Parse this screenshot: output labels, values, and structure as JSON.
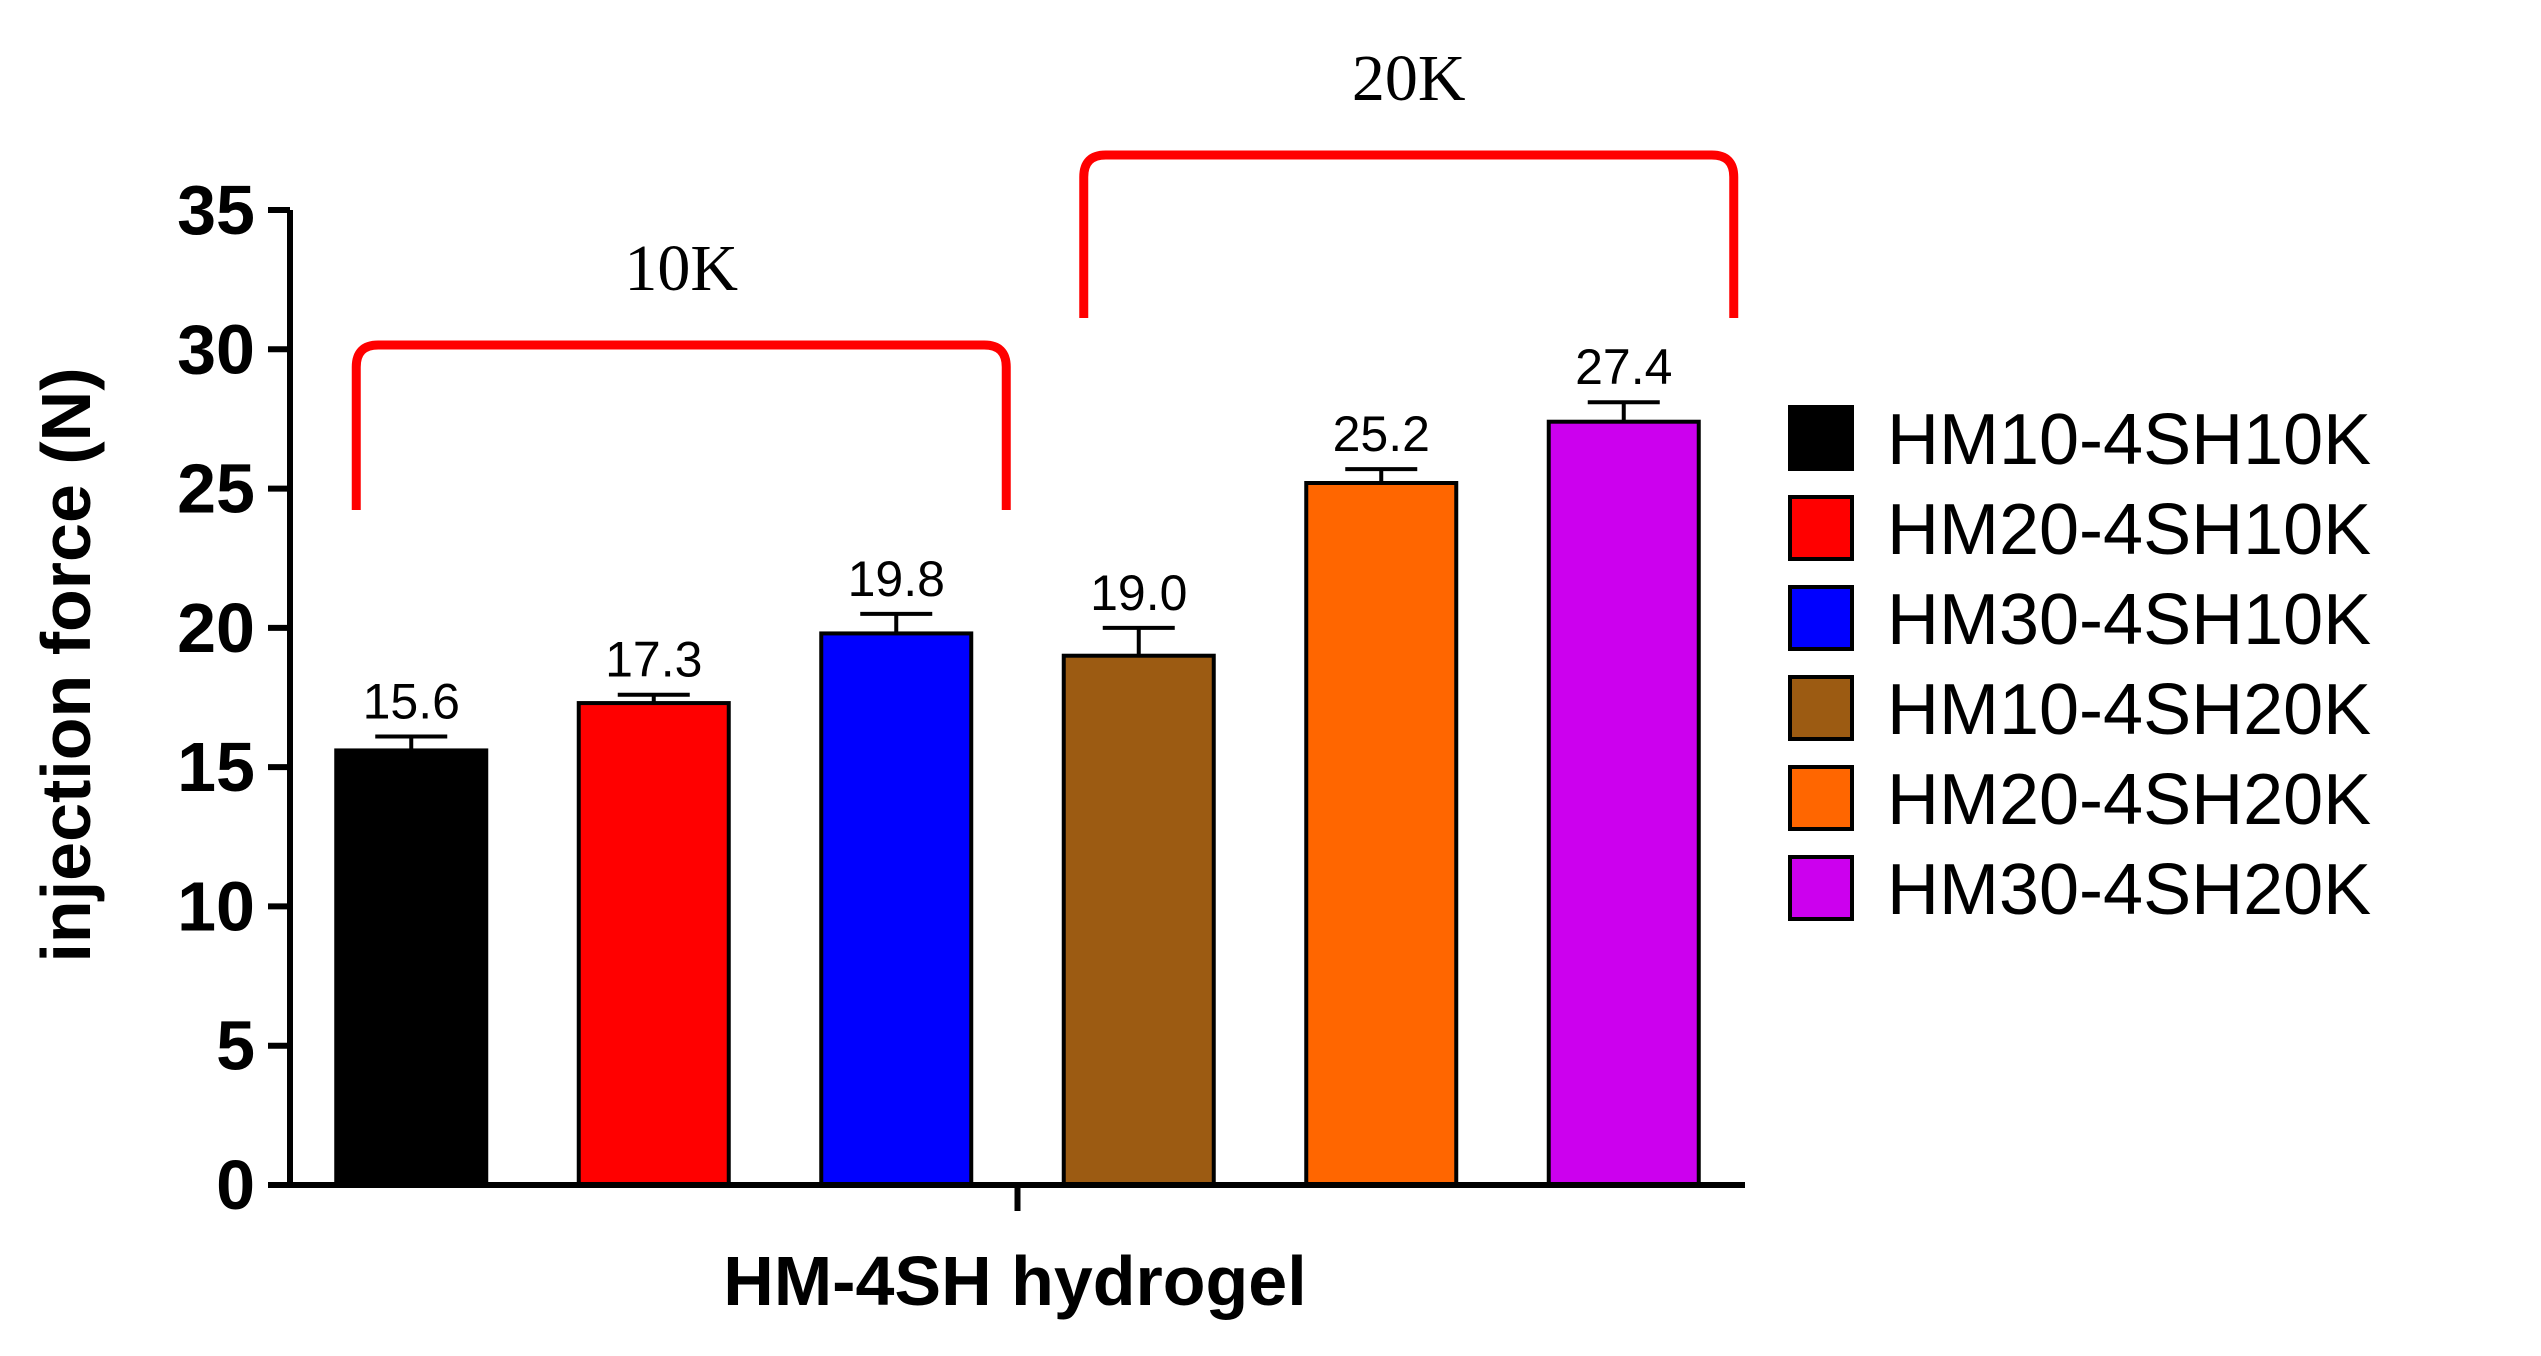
{
  "chart_data": {
    "type": "bar",
    "title": "",
    "xlabel": "HM-4SH hydrogel",
    "ylabel": "injection force (N)",
    "ylim": [
      0,
      35
    ],
    "yticks": [
      0,
      5,
      10,
      15,
      20,
      25,
      30,
      35
    ],
    "ytick_labels": [
      "0",
      "5",
      "10",
      "15",
      "20",
      "25",
      "30",
      "35"
    ],
    "grid": false,
    "legend_position": "right",
    "categories": [
      "HM10-4SH10K",
      "HM20-4SH10K",
      "HM30-4SH10K",
      "HM10-4SH20K",
      "HM20-4SH20K",
      "HM30-4SH20K"
    ],
    "values": [
      15.6,
      17.3,
      19.8,
      19.0,
      25.2,
      27.4
    ],
    "value_labels": [
      "15.6",
      "17.3",
      "19.8",
      "19.0",
      "25.2",
      "27.4"
    ],
    "error_upper": [
      0.5,
      0.3,
      0.7,
      1.0,
      0.5,
      0.7
    ],
    "colors": [
      "#000000",
      "#ff0000",
      "#0000ff",
      "#9c5b12",
      "#ff6600",
      "#cc00ee"
    ],
    "group_brackets": [
      {
        "label": "10K",
        "from_index": 0,
        "to_index": 2,
        "color": "#ff0000"
      },
      {
        "label": "20K",
        "from_index": 3,
        "to_index": 5,
        "color": "#ff0000"
      }
    ],
    "legend": [
      "HM10-4SH10K",
      "HM20-4SH10K",
      "HM30-4SH10K",
      "HM10-4SH20K",
      "HM20-4SH20K",
      "HM30-4SH20K"
    ]
  }
}
